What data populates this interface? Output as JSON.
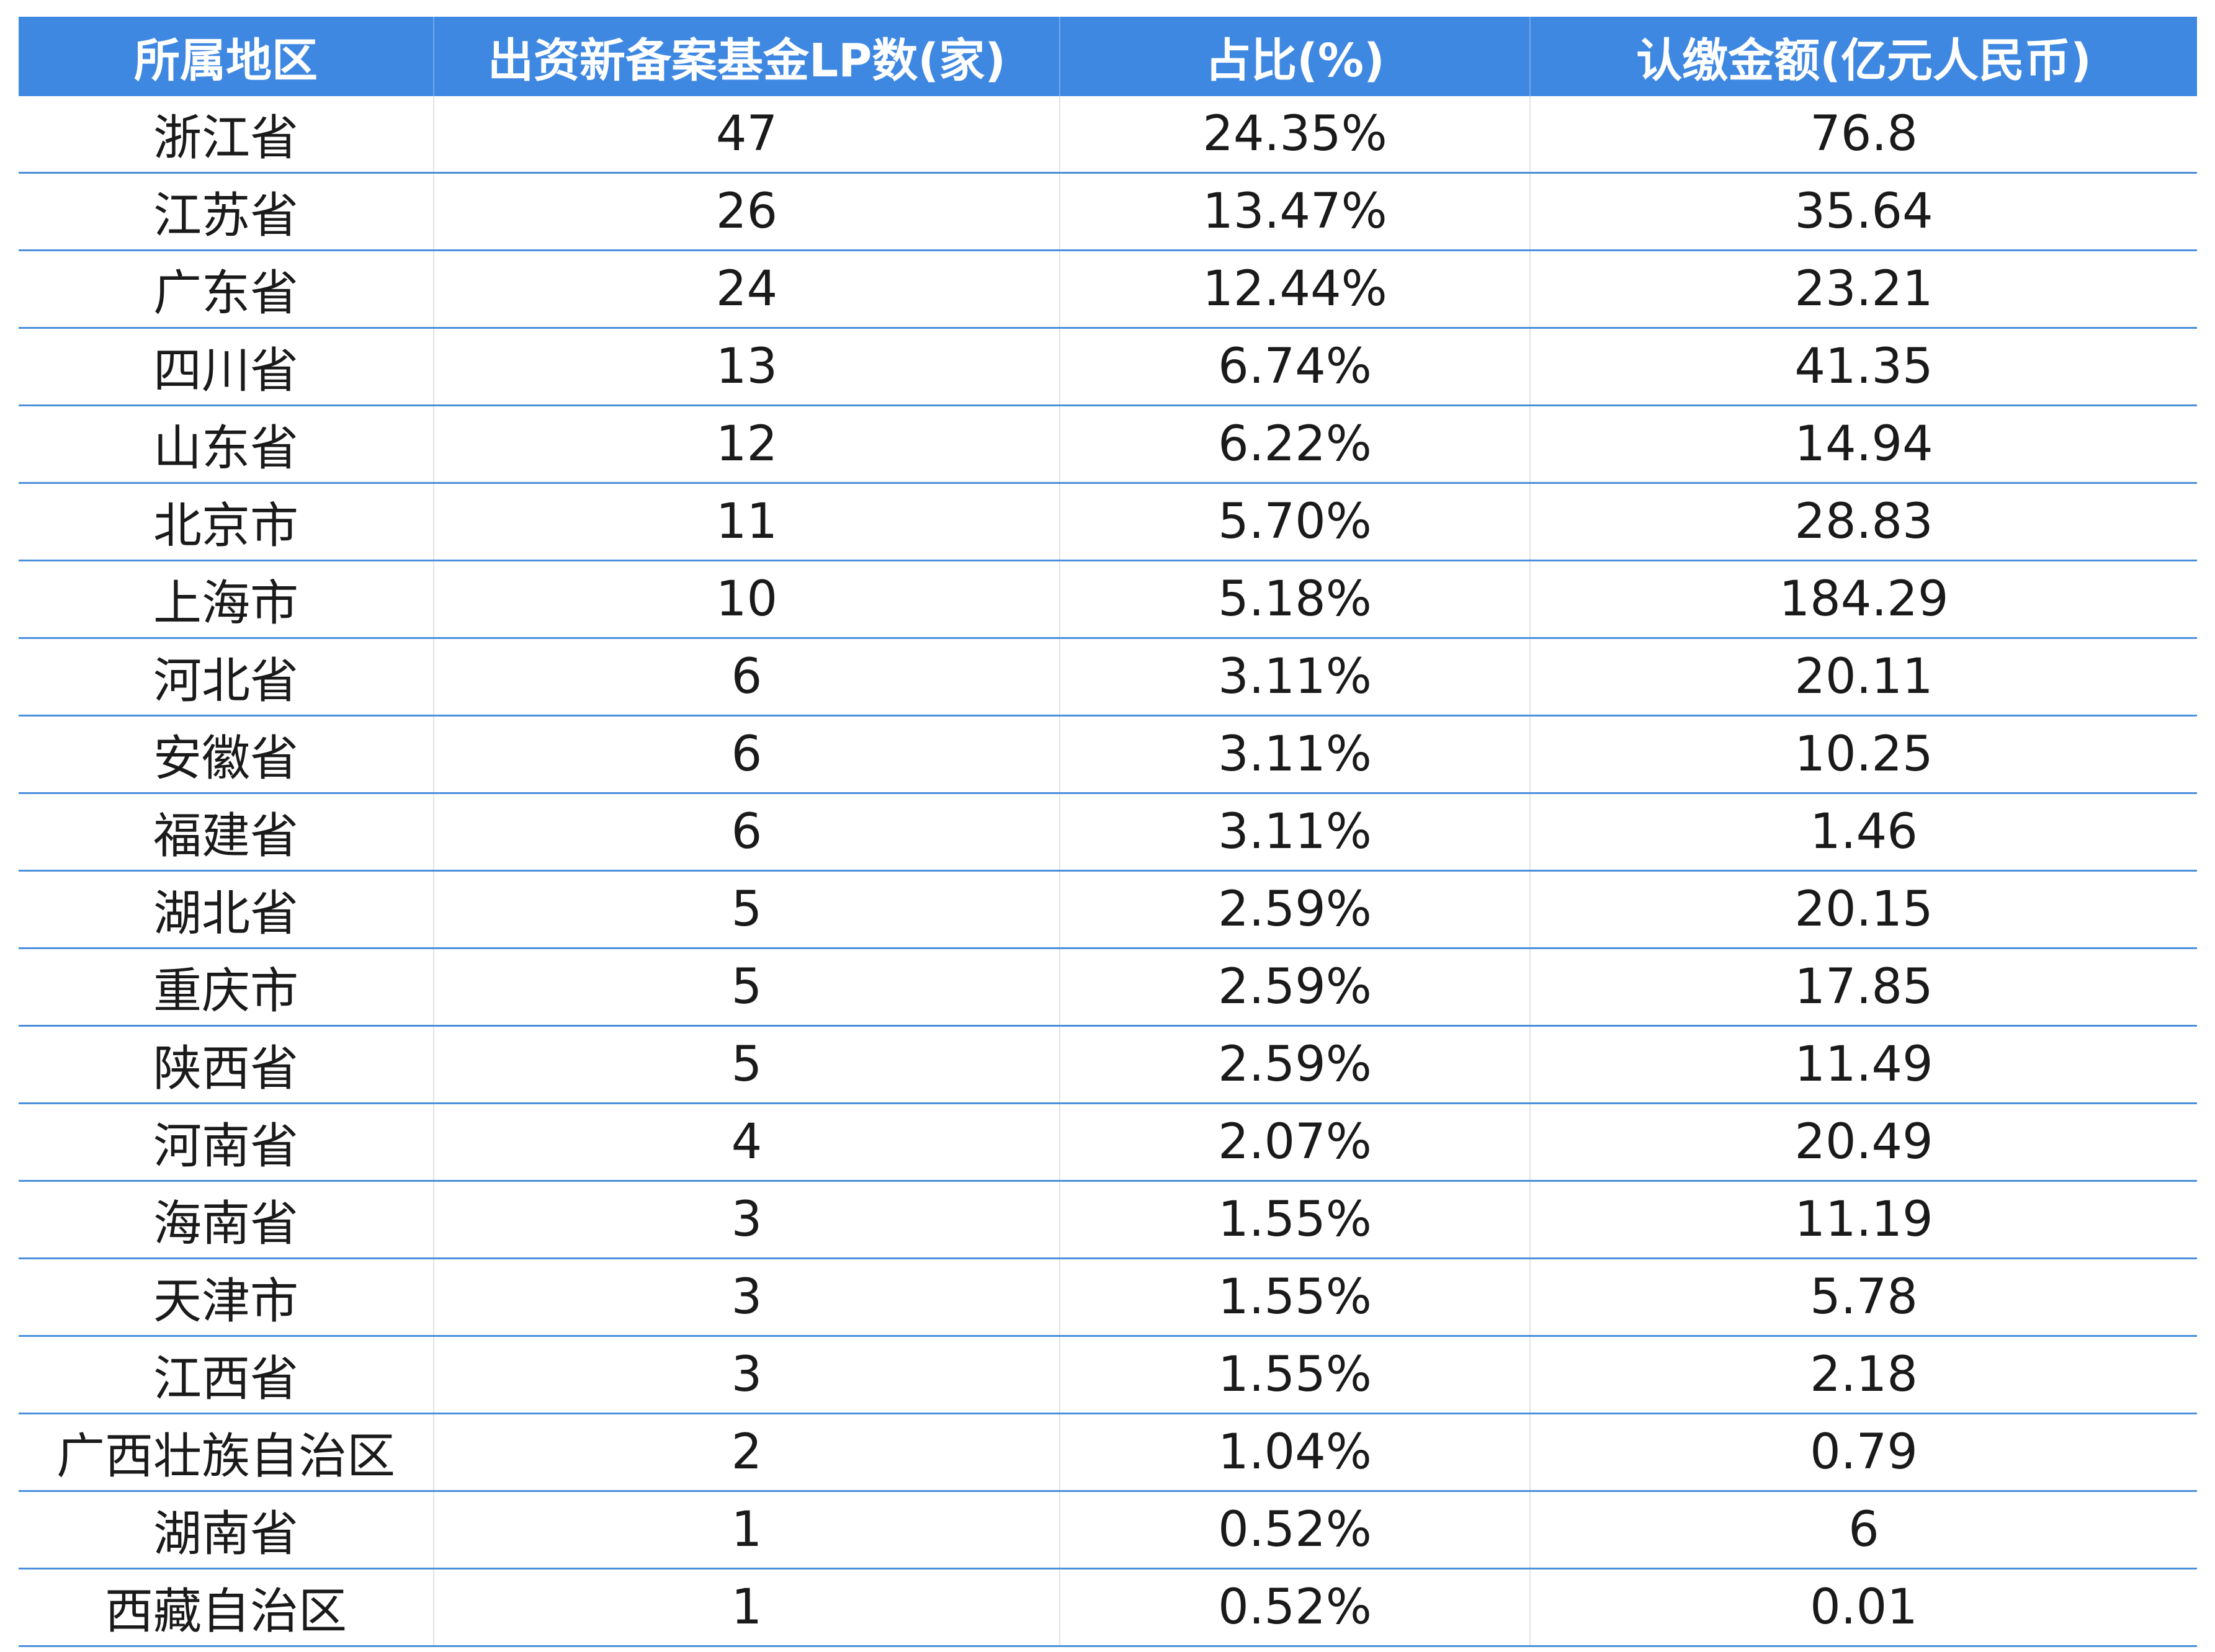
{
  "table": {
    "header": [
      "所属地区",
      "出资新备案基金LP数(家)",
      "占比(%)",
      "认缴金额(亿元人民币)"
    ],
    "rows": [
      [
        "浙江省",
        "47",
        "24.35%",
        "76.8"
      ],
      [
        "江苏省",
        "26",
        "13.47%",
        "35.64"
      ],
      [
        "广东省",
        "24",
        "12.44%",
        "23.21"
      ],
      [
        "四川省",
        "13",
        "6.74%",
        "41.35"
      ],
      [
        "山东省",
        "12",
        "6.22%",
        "14.94"
      ],
      [
        "北京市",
        "11",
        "5.70%",
        "28.83"
      ],
      [
        "上海市",
        "10",
        "5.18%",
        "184.29"
      ],
      [
        "河北省",
        "6",
        "3.11%",
        "20.11"
      ],
      [
        "安徽省",
        "6",
        "3.11%",
        "10.25"
      ],
      [
        "福建省",
        "6",
        "3.11%",
        "1.46"
      ],
      [
        "湖北省",
        "5",
        "2.59%",
        "20.15"
      ],
      [
        "重庆市",
        "5",
        "2.59%",
        "17.85"
      ],
      [
        "陕西省",
        "5",
        "2.59%",
        "11.49"
      ],
      [
        "河南省",
        "4",
        "2.07%",
        "20.49"
      ],
      [
        "海南省",
        "3",
        "1.55%",
        "11.19"
      ],
      [
        "天津市",
        "3",
        "1.55%",
        "5.78"
      ],
      [
        "江西省",
        "3",
        "1.55%",
        "2.18"
      ],
      [
        "广西壮族自治区",
        "2",
        "1.04%",
        "0.79"
      ],
      [
        "湖南省",
        "1",
        "0.52%",
        "6"
      ],
      [
        "西藏自治区",
        "1",
        "0.52%",
        "0.01"
      ]
    ]
  }
}
